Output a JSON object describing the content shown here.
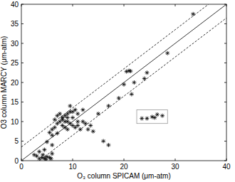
{
  "chart_data": {
    "type": "scatter",
    "x_label": "O₃ column SPICAM (μm-atm)",
    "y_label": "O3 column MARCY (μm-atm)",
    "xlim": [
      0,
      40
    ],
    "ylim": [
      0,
      40
    ],
    "xticks": [
      0,
      10,
      20,
      30,
      40
    ],
    "yticks": [
      0,
      5,
      10,
      15,
      20,
      25,
      30,
      35,
      40
    ],
    "grid": false,
    "series": [
      {
        "color": "#000000",
        "marker": "asterisk",
        "x": [
          3.5,
          4,
          4.5,
          5,
          5.5,
          4.2,
          3,
          5.8,
          6,
          4.8,
          2.5,
          3.5,
          4.5,
          5,
          6,
          5.5,
          6,
          6.5,
          6.5,
          7,
          7,
          7.5,
          7.5,
          8,
          8,
          8,
          8.5,
          8.5,
          9,
          9,
          9,
          9.5,
          9.5,
          10,
          10,
          10,
          10.5,
          10.5,
          11,
          11,
          11.5,
          12,
          12,
          12.5,
          13,
          14,
          15,
          16,
          17,
          13.5,
          8.5,
          9.5,
          7,
          6,
          11,
          9,
          20,
          20.5,
          21,
          21.3,
          22,
          24,
          24.5,
          28.5,
          33.5,
          19,
          21.5,
          17,
          23.5,
          24.5,
          25.5,
          26.5,
          27.5,
          26
        ],
        "values": [
          0.5,
          0.8,
          0.6,
          1,
          0.8,
          1.5,
          1.2,
          0.5,
          1.8,
          0.3,
          1.5,
          2.3,
          2.8,
          4.8,
          4,
          7.2,
          6.5,
          8.5,
          10.5,
          11.5,
          9.5,
          10,
          12,
          9,
          10.5,
          11,
          11.5,
          10,
          10,
          11,
          12,
          14,
          12.5,
          12.5,
          11,
          9,
          8.5,
          13,
          12,
          10,
          8,
          13,
          10,
          9.5,
          8,
          7.5,
          12,
          5,
          4,
          9,
          8.5,
          9.5,
          7,
          8,
          9,
          8,
          19.5,
          22.8,
          23,
          22.9,
          20,
          21,
          22.5,
          27.5,
          37.5,
          16,
          17,
          14,
          10.8,
          10.8,
          11.2,
          11.8,
          11.5,
          11
        ]
      },
      {
        "type": "line",
        "color": "#000000",
        "line_style": "solid",
        "x": [
          0,
          40
        ],
        "values": [
          0,
          40
        ]
      },
      {
        "type": "line",
        "color": "#000000",
        "line_style": "dashed",
        "x": [
          0,
          36.5
        ],
        "values": [
          3.5,
          40
        ]
      },
      {
        "type": "line",
        "color": "#000000",
        "line_style": "dashed",
        "x": [
          3.5,
          40
        ],
        "values": [
          0,
          36.5
        ]
      }
    ],
    "box": {
      "x": [
        22.5,
        28.5
      ],
      "y": [
        9.5,
        13
      ]
    }
  }
}
